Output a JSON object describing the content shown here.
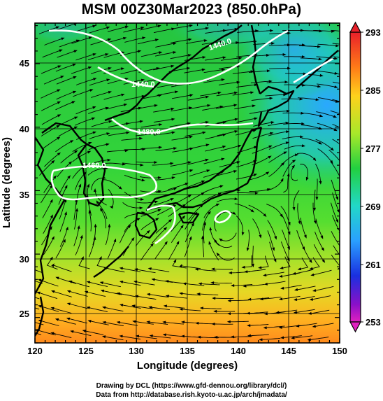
{
  "title": "MSM 00Z30Mar2023 (850.0hPa)",
  "axes": {
    "xlabel": "Longitude (degrees)",
    "ylabel": "Latitude  (degrees)",
    "xticks": [
      "120",
      "125",
      "130",
      "135",
      "140",
      "145",
      "150"
    ],
    "yticks": [
      "25",
      "30",
      "35",
      "40",
      "45"
    ],
    "xlim": [
      120,
      150
    ],
    "ylim": [
      22.4,
      47.6
    ]
  },
  "colorbar": {
    "labels": [
      "293",
      "285",
      "277",
      "269",
      "261",
      "253"
    ],
    "range": [
      253,
      293
    ]
  },
  "contours": [
    {
      "label": "1440.0"
    },
    {
      "label": "1480.0"
    },
    {
      "label": "1460.0"
    },
    {
      "label": "1440.0"
    }
  ],
  "credits": {
    "line1": "Drawing by DCL (https://www.gfd-dennou.org/library/dcl/)",
    "line2": "Data from http://database.rish.kyoto-u.ac.jp/arch/jmadata/"
  },
  "colors": {
    "cold": "#3aa0ff",
    "mild": "#22dd33",
    "warm": "#ffb020",
    "contour": "#ffffff",
    "coast": "#000000"
  }
}
